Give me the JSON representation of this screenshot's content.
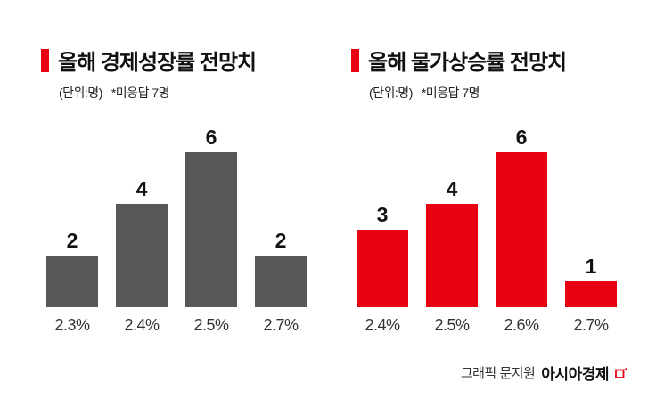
{
  "accent_color": "#e60012",
  "chart_data": [
    {
      "type": "bar",
      "title": "올해 경제성장률 전망치",
      "unit_label": "(단위:명)",
      "note": "*미응답 7명",
      "categories": [
        "2.3%",
        "2.4%",
        "2.5%",
        "2.7%"
      ],
      "values": [
        2,
        4,
        6,
        2
      ],
      "bar_color": "#595757",
      "ylim": [
        0,
        7
      ],
      "grid": false,
      "legend": false,
      "data_labels": true
    },
    {
      "type": "bar",
      "title": "올해 물가상승률 전망치",
      "unit_label": "(단위:명)",
      "note": "*미응답 7명",
      "categories": [
        "2.4%",
        "2.5%",
        "2.6%",
        "2.7%"
      ],
      "values": [
        3,
        4,
        6,
        1
      ],
      "bar_color": "#e60012",
      "ylim": [
        0,
        7
      ],
      "grid": false,
      "legend": false,
      "data_labels": true
    }
  ],
  "footer": {
    "credit": "그래픽 문지원",
    "brand": "아시아경제"
  }
}
